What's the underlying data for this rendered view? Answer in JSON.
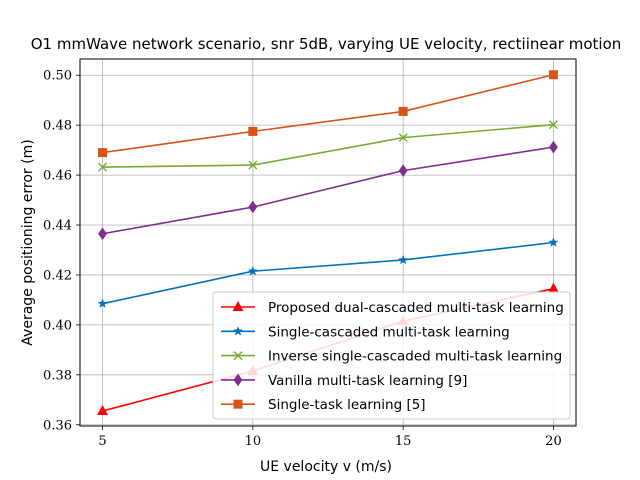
{
  "chart_data": {
    "type": "line",
    "title": "O1 mmWave network scenario, snr 5dB, varying UE velocity, rectiinear motion",
    "xlabel": "UE velocity v (m/s)",
    "ylabel": "Average positioning error (m)",
    "x": [
      5,
      10,
      15,
      20
    ],
    "xticks": [
      5,
      10,
      15,
      20
    ],
    "yticks": [
      0.36,
      0.38,
      0.4,
      0.42,
      0.44,
      0.46,
      0.48,
      0.5
    ],
    "ytick_labels": [
      "0.36",
      "0.38",
      "0.40",
      "0.42",
      "0.44",
      "0.46",
      "0.48",
      "0.50"
    ],
    "xlim": [
      4.25,
      20.75
    ],
    "ylim": [
      0.3595,
      0.5065
    ],
    "grid": true,
    "legend_position": "lower-right",
    "series": [
      {
        "name": "Proposed dual-cascaded multi-task learning",
        "values": [
          0.3655,
          0.3815,
          0.4015,
          0.4145
        ],
        "color": "#ff0000",
        "marker": "triangle"
      },
      {
        "name": "Single-cascaded multi-task learning",
        "values": [
          0.4085,
          0.4215,
          0.426,
          0.433
        ],
        "color": "#0072bd",
        "marker": "star"
      },
      {
        "name": "Inverse single-cascaded multi-task learning",
        "values": [
          0.4632,
          0.464,
          0.475,
          0.4802
        ],
        "color": "#77ac30",
        "marker": "x"
      },
      {
        "name": "Vanilla multi-task learning [9]",
        "values": [
          0.4365,
          0.4472,
          0.4618,
          0.4712
        ],
        "color": "#7e2f8e",
        "marker": "diamond"
      },
      {
        "name": "Single-task learning [5]",
        "values": [
          0.469,
          0.4775,
          0.4855,
          0.5002
        ],
        "color": "#d95319",
        "marker": "square"
      }
    ]
  }
}
